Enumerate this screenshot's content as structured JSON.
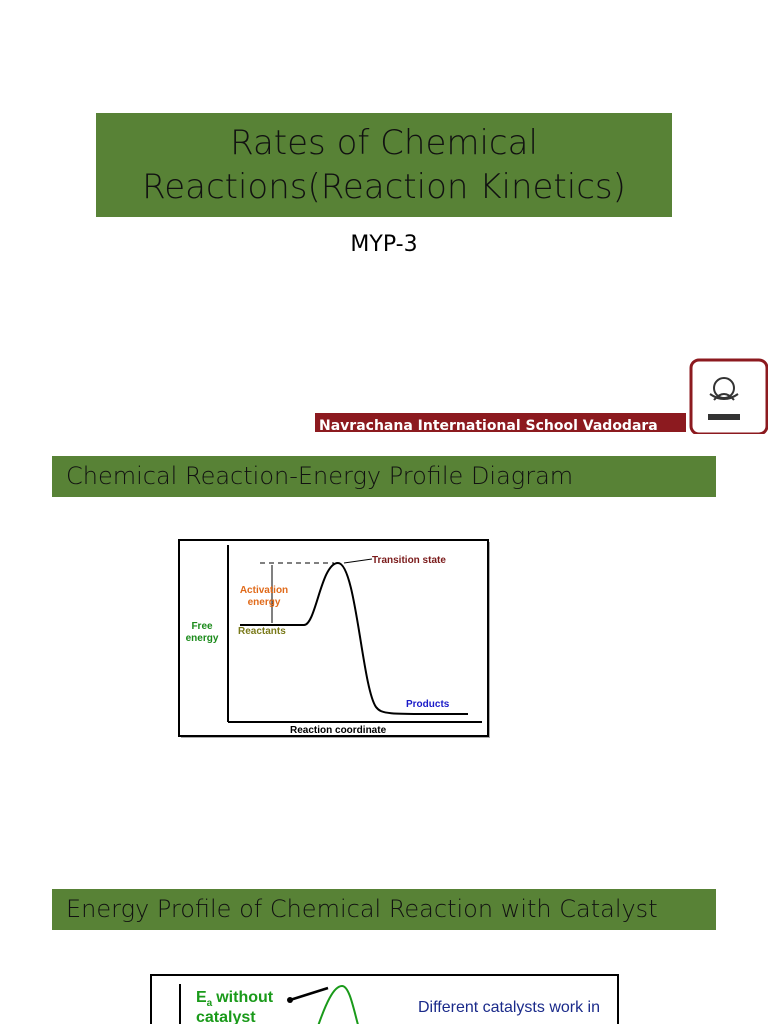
{
  "slide1": {
    "title_lines": [
      "Rates of Chemical",
      "Reactions(Reaction Kinetics)"
    ],
    "subtitle": "MYP-3",
    "banner": "Navrachana International School Vadodara"
  },
  "slide2": {
    "title": "Chemical Reaction-Energy Profile Diagram",
    "diagram": {
      "transition_state": "Transition state",
      "activation_energy_lines": [
        "Activation",
        "energy"
      ],
      "y_axis_lines": [
        "Free",
        "energy"
      ],
      "reactants": "Reactants",
      "products": "Products",
      "x_axis": "Reaction coordinate"
    }
  },
  "slide3": {
    "title": "Energy Profile of Chemical Reaction with Catalyst",
    "diagram": {
      "ea_symbol": "E",
      "ea_subscript": "a",
      "ea_text": "without",
      "ea_text2": "catalyst",
      "note": "Different catalysts work in"
    }
  }
}
